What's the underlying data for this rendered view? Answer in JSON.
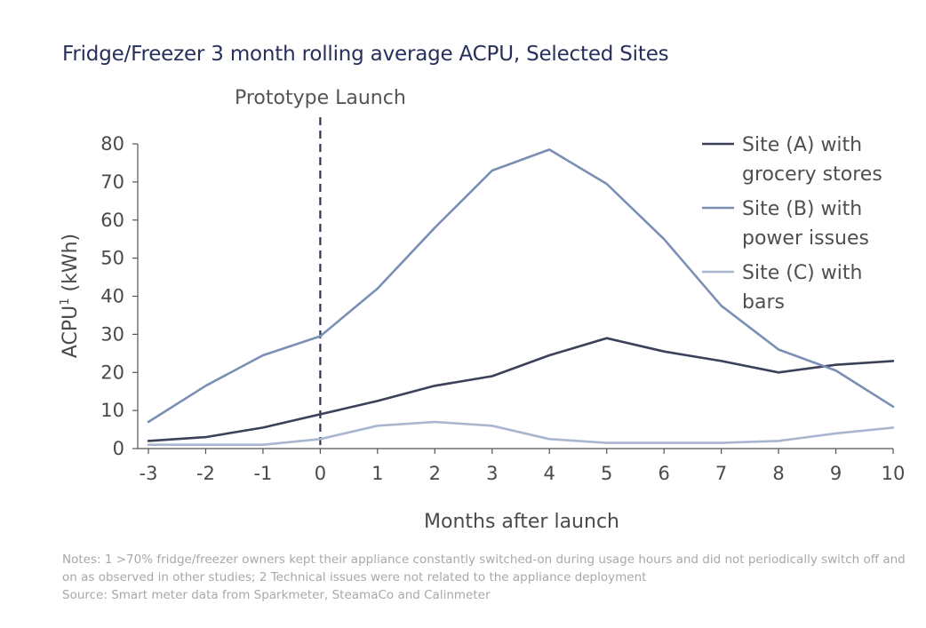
{
  "chart_data": {
    "type": "line",
    "title": "Fridge/Freezer 3 month rolling average ACPU, Selected Sites",
    "xlabel": "Months after launch",
    "ylabel": "ACPU¹ (kWh)",
    "ylabel_main": "ACPU",
    "ylabel_sup": "1",
    "ylabel_unit": " (kWh)",
    "x": [
      -3,
      -2,
      -1,
      0,
      1,
      2,
      3,
      4,
      5,
      6,
      7,
      8,
      9,
      10
    ],
    "x_tick_labels": [
      "-3",
      "-2",
      "-1",
      "0",
      "1",
      "2",
      "3",
      "4",
      "5",
      "6",
      "7",
      "8",
      "9",
      "10"
    ],
    "ylim": [
      0,
      80
    ],
    "y_ticks": [
      0,
      10,
      20,
      30,
      40,
      50,
      60,
      70,
      80
    ],
    "grid": false,
    "legend_position": "top-right",
    "annotation": {
      "label": "Prototype Launch",
      "x": 0
    },
    "series": [
      {
        "name": "Site (A) with grocery stores",
        "legend_lines": [
          "Site (A) with",
          "grocery stores"
        ],
        "color": "#3b4159",
        "values": [
          2,
          3,
          5.5,
          9,
          12.5,
          16.5,
          19,
          24.5,
          29,
          25.5,
          23,
          20,
          22,
          23
        ]
      },
      {
        "name": "Site (B) with power issues",
        "legend_lines": [
          "Site (B) with",
          "power issues"
        ],
        "color": "#7b8fb5",
        "values": [
          7,
          16.5,
          24.5,
          29.5,
          42,
          58,
          73,
          78.5,
          69.5,
          55,
          37.5,
          26,
          20.5,
          11
        ]
      },
      {
        "name": "Site (C) with bars",
        "legend_lines": [
          "Site (C) with",
          "bars"
        ],
        "color": "#a9b6d0",
        "values": [
          1,
          1,
          1,
          2.5,
          6,
          7,
          6,
          2.5,
          1.5,
          1.5,
          1.5,
          2,
          4,
          5.5
        ]
      }
    ]
  },
  "notes": {
    "line1": "Notes: 1 >70% fridge/freezer owners kept their appliance constantly switched-on during usage hours and did not periodically switch off and",
    "line2": "on as observed  in other studies; 2 Technical issues were not related to the appliance deployment",
    "source": "Source: Smart meter data from Sparkmeter, SteamaCo and Calinmeter"
  }
}
